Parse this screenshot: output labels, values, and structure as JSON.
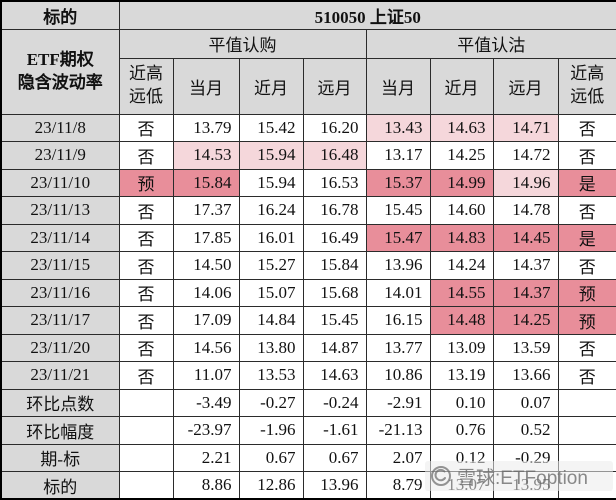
{
  "palette": {
    "header_bg": "#d9d9d9",
    "hl_light": "#f5d7db",
    "hl_dark": "#e88e9a",
    "border": "#2b2b2b",
    "watermark_text_color": "#696969"
  },
  "header": {
    "corner_label": "标的",
    "underlying": "510050 上证50",
    "group_label": {
      "line1": "ETF期权",
      "line2": "隐含波动率"
    },
    "call_group": "平值认购",
    "put_group": "平值认沽",
    "flag_header": {
      "line1": "近高",
      "line2": "远低"
    },
    "month_cols": [
      "当月",
      "近月",
      "远月"
    ]
  },
  "rows": [
    {
      "date": "23/11/8",
      "cells": [
        "否",
        "13.79",
        "15.42",
        "16.20",
        "13.43",
        "14.63",
        "14.71",
        "否"
      ],
      "hl": [
        null,
        null,
        null,
        null,
        "light",
        "light",
        "light",
        null
      ]
    },
    {
      "date": "23/11/9",
      "cells": [
        "否",
        "14.53",
        "15.94",
        "16.48",
        "13.17",
        "14.25",
        "14.72",
        "否"
      ],
      "hl": [
        null,
        "light",
        "light",
        "light",
        null,
        null,
        null,
        null
      ]
    },
    {
      "date": "23/11/10",
      "cells": [
        "预",
        "15.84",
        "15.94",
        "16.53",
        "15.37",
        "14.99",
        "14.96",
        "是"
      ],
      "hl": [
        "dark",
        "dark",
        null,
        null,
        "dark",
        "dark",
        "light",
        "dark"
      ]
    },
    {
      "date": "23/11/13",
      "cells": [
        "否",
        "17.37",
        "16.24",
        "16.78",
        "15.45",
        "14.60",
        "14.78",
        "否"
      ],
      "hl": [
        null,
        null,
        null,
        null,
        null,
        null,
        null,
        null
      ]
    },
    {
      "date": "23/11/14",
      "cells": [
        "否",
        "17.85",
        "16.01",
        "16.49",
        "15.47",
        "14.83",
        "14.45",
        "是"
      ],
      "hl": [
        null,
        null,
        null,
        null,
        "dark",
        "dark",
        "dark",
        "dark"
      ]
    },
    {
      "date": "23/11/15",
      "cells": [
        "否",
        "14.50",
        "15.27",
        "15.84",
        "13.96",
        "14.24",
        "14.37",
        "否"
      ],
      "hl": [
        null,
        null,
        null,
        null,
        null,
        null,
        null,
        null
      ]
    },
    {
      "date": "23/11/16",
      "cells": [
        "否",
        "14.06",
        "15.07",
        "15.68",
        "14.01",
        "14.55",
        "14.37",
        "预"
      ],
      "hl": [
        null,
        null,
        null,
        null,
        null,
        "dark",
        "dark",
        "dark"
      ]
    },
    {
      "date": "23/11/17",
      "cells": [
        "否",
        "17.09",
        "14.84",
        "15.45",
        "16.15",
        "14.48",
        "14.25",
        "预"
      ],
      "hl": [
        null,
        null,
        null,
        null,
        null,
        "dark",
        "dark",
        "dark"
      ]
    },
    {
      "date": "23/11/20",
      "cells": [
        "否",
        "14.56",
        "13.80",
        "14.87",
        "13.77",
        "13.09",
        "13.59",
        "否"
      ],
      "hl": [
        null,
        null,
        null,
        null,
        null,
        null,
        null,
        null
      ]
    },
    {
      "date": "23/11/21",
      "cells": [
        "否",
        "11.07",
        "13.53",
        "14.63",
        "10.86",
        "13.19",
        "13.66",
        "否"
      ],
      "hl": [
        null,
        null,
        null,
        null,
        null,
        null,
        null,
        null
      ]
    }
  ],
  "summary_rows": [
    {
      "label": "环比点数",
      "values": [
        "-3.49",
        "-0.27",
        "-0.24",
        "-2.91",
        "0.10",
        "0.07"
      ]
    },
    {
      "label": "环比幅度",
      "values": [
        "-23.97",
        "-1.96",
        "-1.61",
        "-21.13",
        "0.76",
        "0.52"
      ]
    },
    {
      "label": "期-标",
      "values": [
        "2.21",
        "0.67",
        "0.67",
        "2.07",
        "0.12",
        "-0.29"
      ]
    },
    {
      "label": "标的",
      "values": [
        "8.86",
        "12.86",
        "13.96",
        "8.79",
        "13.07",
        "13.95"
      ]
    }
  ],
  "watermark": {
    "text": "雪球:ETFoption"
  }
}
